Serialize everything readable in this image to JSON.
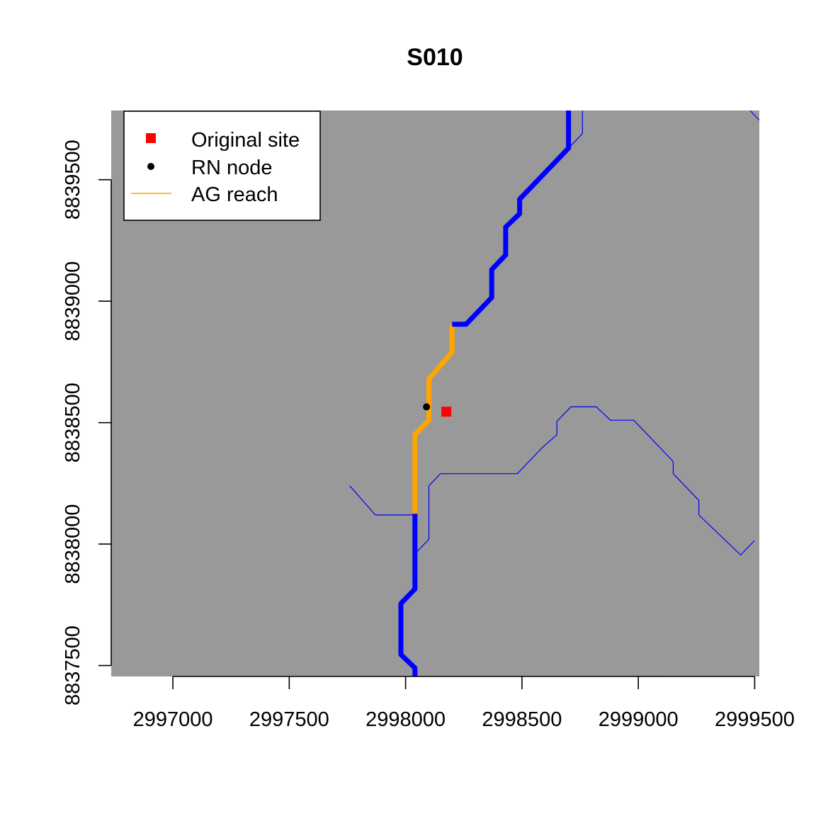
{
  "chart_data": {
    "type": "map",
    "title": "S010",
    "xlabel": "",
    "ylabel": "",
    "xlim": [
      2996735,
      2999520
    ],
    "ylim": [
      8837455,
      8839785
    ],
    "x_ticks": [
      2997000,
      2997500,
      2998000,
      2998500,
      2999000,
      2999500
    ],
    "x_tick_labels": [
      "2997000",
      "2997500",
      "2998000",
      "2998500",
      "2999000",
      "2999500"
    ],
    "y_ticks": [
      8837500,
      8838000,
      8838500,
      8839000,
      8839500
    ],
    "y_tick_labels": [
      "8837500",
      "8838000",
      "8838500",
      "8839000",
      "8839500"
    ],
    "background_color": "#999999",
    "legend": {
      "position": "top-left",
      "entries": [
        {
          "label": "Original site",
          "symbol": "square",
          "color": "#ff0000"
        },
        {
          "label": "RN node",
          "symbol": "circle",
          "color": "#000000"
        },
        {
          "label": "AG reach",
          "symbol": "line",
          "color": "#ffa500"
        }
      ]
    },
    "series": [
      {
        "kind": "line",
        "role": "river-main",
        "color": "#0000ff",
        "width": "thick",
        "points": [
          [
            2998040,
            8837455
          ],
          [
            2998040,
            8837490
          ],
          [
            2997980,
            8837545
          ],
          [
            2997980,
            8837755
          ],
          [
            2998040,
            8837815
          ],
          [
            2998040,
            8838125
          ]
        ]
      },
      {
        "kind": "line",
        "role": "AG reach",
        "color": "#ffa500",
        "width": "thick",
        "points": [
          [
            2998040,
            8838125
          ],
          [
            2998040,
            8838450
          ],
          [
            2998100,
            8838510
          ],
          [
            2998100,
            8838680
          ],
          [
            2998200,
            8838790
          ],
          [
            2998200,
            8838905
          ]
        ]
      },
      {
        "kind": "line",
        "role": "river-main",
        "color": "#0000ff",
        "width": "thick",
        "points": [
          [
            2998200,
            8838905
          ],
          [
            2998260,
            8838905
          ],
          [
            2998370,
            8839015
          ],
          [
            2998370,
            8839130
          ],
          [
            2998430,
            8839190
          ],
          [
            2998430,
            8839305
          ],
          [
            2998490,
            8839360
          ],
          [
            2998490,
            8839420
          ],
          [
            2998700,
            8839630
          ],
          [
            2998700,
            8839785
          ]
        ]
      },
      {
        "kind": "line",
        "role": "tributary",
        "color": "#0000ff",
        "width": "thin",
        "points": [
          [
            2998700,
            8839630
          ],
          [
            2998760,
            8839690
          ],
          [
            2998760,
            8839785
          ]
        ]
      },
      {
        "kind": "line",
        "role": "tributary",
        "color": "#0000ff",
        "width": "thin",
        "points": [
          [
            2997760,
            8838240
          ],
          [
            2997870,
            8838120
          ],
          [
            2998040,
            8838120
          ]
        ]
      },
      {
        "kind": "line",
        "role": "tributary",
        "color": "#0000ff",
        "width": "thin",
        "points": [
          [
            2998040,
            8837960
          ],
          [
            2998100,
            8838020
          ],
          [
            2998100,
            8838240
          ],
          [
            2998150,
            8838290
          ],
          [
            2998480,
            8838290
          ],
          [
            2998590,
            8838400
          ],
          [
            2998650,
            8838450
          ],
          [
            2998650,
            8838505
          ],
          [
            2998710,
            8838565
          ],
          [
            2998820,
            8838565
          ],
          [
            2998880,
            8838510
          ],
          [
            2998980,
            8838510
          ],
          [
            2999150,
            8838340
          ],
          [
            2999150,
            8838290
          ],
          [
            2999260,
            8838180
          ],
          [
            2999260,
            8838120
          ],
          [
            2999440,
            8837955
          ],
          [
            2999500,
            8838015
          ]
        ]
      },
      {
        "kind": "line",
        "role": "tributary",
        "color": "#0000ff",
        "width": "thin",
        "points": [
          [
            2999480,
            8839785
          ],
          [
            2999520,
            8839745
          ]
        ]
      },
      {
        "kind": "line",
        "role": "tributary",
        "color": "#0000ff",
        "width": "thin",
        "points": [
          [
            2998990,
            8837455
          ],
          [
            2999100,
            8837455
          ]
        ]
      }
    ],
    "points": [
      {
        "label": "Original site",
        "x": 2998175,
        "y": 8838545,
        "symbol": "square",
        "color": "#ff0000"
      },
      {
        "label": "RN node",
        "x": 2998090,
        "y": 8838565,
        "symbol": "circle",
        "color": "#000000"
      }
    ]
  }
}
